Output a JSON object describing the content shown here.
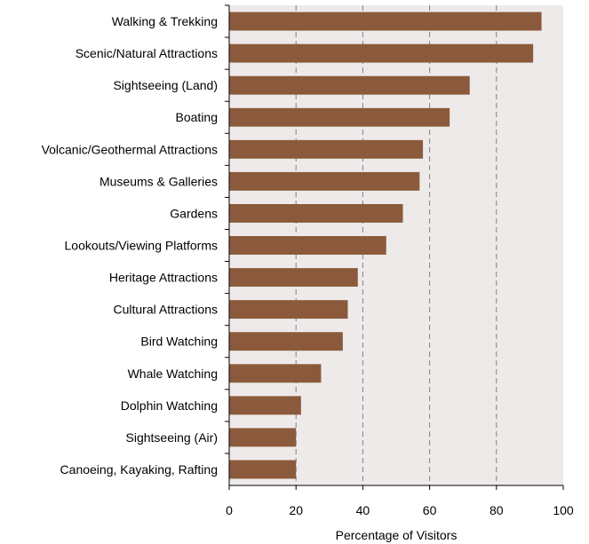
{
  "chart_data": {
    "type": "bar",
    "orientation": "horizontal",
    "categories": [
      "Walking & Trekking",
      "Scenic/Natural Attractions",
      "Sightseeing (Land)",
      "Boating",
      "Volcanic/Geothermal Attractions",
      "Museums & Galleries",
      "Gardens",
      "Lookouts/Viewing Platforms",
      "Heritage Attractions",
      "Cultural Attractions",
      "Bird Watching",
      "Whale Watching",
      "Dolphin Watching",
      "Sightseeing (Air)",
      "Canoeing, Kayaking, Rafting"
    ],
    "values": [
      93.5,
      91,
      72,
      66,
      58,
      57,
      52,
      47,
      38.5,
      35.5,
      34,
      27.5,
      21.5,
      20,
      20
    ],
    "xlabel": "Percentage of Visitors",
    "xlim": [
      0,
      100
    ],
    "xticks": [
      "0",
      "20",
      "40",
      "60",
      "80",
      "100"
    ],
    "grid": "vertical dashed",
    "colors": {
      "bar": "#8B5A3C",
      "plot_background": "#EFEAEA",
      "grid": "#808080"
    }
  }
}
